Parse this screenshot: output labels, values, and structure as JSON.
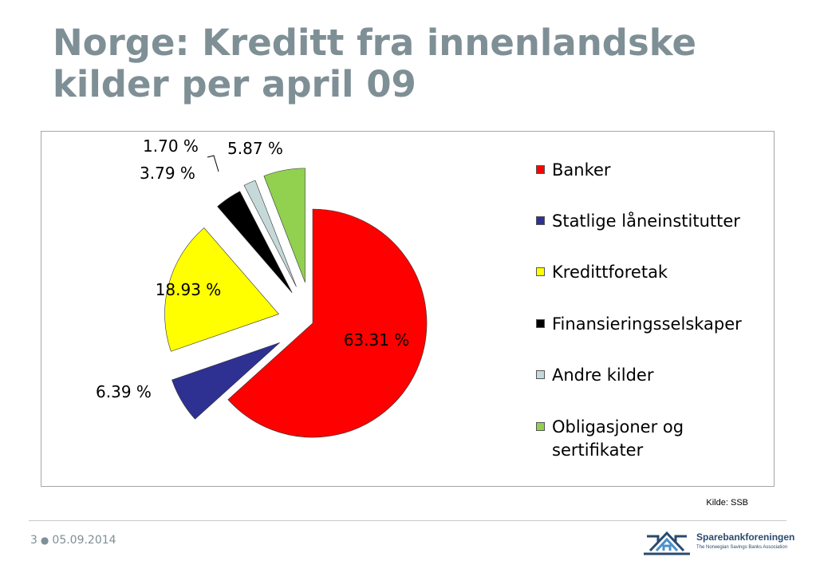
{
  "slide": {
    "title": "Norge: Kreditt fra innenlandske kilder per april 09",
    "source": "Kilde: SSB"
  },
  "footer": {
    "page": "3",
    "date": "05.09.2014",
    "logo_name": "Sparebankforeningen",
    "logo_tagline": "The Norwegian Savings Banks Association"
  },
  "colors": {
    "title": "#7f8f96",
    "banker": "#ff0000",
    "statlige": "#2e3192",
    "kredittforetak": "#ffff00",
    "finansiering": "#000000",
    "andre": "#c6d9d9",
    "obligasjoner": "#92d050"
  },
  "chart_data": {
    "type": "pie",
    "exploded": true,
    "legend_position": "right",
    "slices": [
      {
        "name": "Banker",
        "value": 63.31,
        "label": "63.31 %",
        "color": "#ff0000"
      },
      {
        "name": "Statlige låneinstitutter",
        "value": 6.39,
        "label": "6.39 %",
        "color": "#2e3192"
      },
      {
        "name": "Kredittforetak",
        "value": 18.93,
        "label": "18.93 %",
        "color": "#ffff00"
      },
      {
        "name": "Finansieringsselskaper",
        "value": 3.79,
        "label": "3.79 %",
        "color": "#000000"
      },
      {
        "name": "Andre kilder",
        "value": 1.7,
        "label": "1.70 %",
        "color": "#c6d9d9"
      },
      {
        "name": "Obligasjoner og sertifikater",
        "value": 5.87,
        "label": "5.87 %",
        "color": "#92d050"
      }
    ],
    "legend": [
      {
        "text": "Banker"
      },
      {
        "text": "Statlige låneinstitutter"
      },
      {
        "text": "Kredittforetak"
      },
      {
        "text": "Finansieringsselskaper"
      },
      {
        "text": "Andre kilder"
      },
      {
        "text": "Obligasjoner og sertifikater"
      }
    ]
  }
}
